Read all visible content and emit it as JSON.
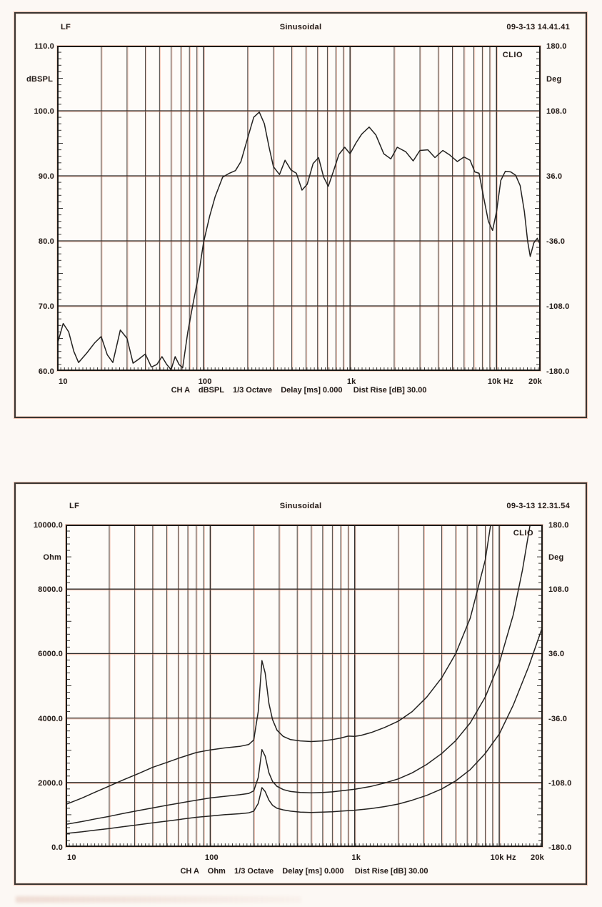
{
  "page": {
    "background": "#fcf8f4"
  },
  "chart_data": [
    {
      "type": "line",
      "header": {
        "left": "LF",
        "center": "Sinusoidal",
        "right": "09-3-13 14.41.41"
      },
      "watermark": "CLIO",
      "y_axis": {
        "unit": "dBSPL",
        "min": 60,
        "max": 110,
        "labels": [
          "110.0",
          "100.0",
          "90.0",
          "80.0",
          "70.0",
          "60.0"
        ]
      },
      "y2_axis": {
        "unit": "Deg",
        "labels": [
          "180.0",
          "108.0",
          "36.0",
          "-36.0",
          "-108.0",
          "-180.0"
        ]
      },
      "x_axis": {
        "scale": "log",
        "min": 10,
        "max": 20000,
        "labels": [
          {
            "text": "10",
            "freq": 10,
            "align": "start"
          },
          {
            "text": "100",
            "freq": 100,
            "align": "middle"
          },
          {
            "text": "1k",
            "freq": 1000,
            "align": "middle"
          },
          {
            "text": "10k Hz",
            "freq": 10000,
            "align": "middle"
          },
          {
            "text": "20k",
            "freq": 20000,
            "align": "end"
          }
        ]
      },
      "grid": true,
      "legend_position": "none",
      "caption": "CH A    dBSPL    1/3 Octave    Delay [ms] 0.000     Dist Rise [dB] 30.00",
      "series": [
        {
          "name": "spl-response",
          "points": [
            [
              10,
              64
            ],
            [
              11,
              67.3
            ],
            [
              12,
              66
            ],
            [
              13,
              63
            ],
            [
              14,
              61.3
            ],
            [
              16,
              62.8
            ],
            [
              18,
              64.3
            ],
            [
              20,
              65.3
            ],
            [
              22,
              62.5
            ],
            [
              24,
              61.3
            ],
            [
              27,
              66.3
            ],
            [
              30,
              65
            ],
            [
              33,
              61.2
            ],
            [
              36,
              61.8
            ],
            [
              40,
              62.6
            ],
            [
              44,
              60.6
            ],
            [
              48,
              61
            ],
            [
              52,
              62.2
            ],
            [
              56,
              61
            ],
            [
              60,
              60.2
            ],
            [
              64,
              62.2
            ],
            [
              68,
              61
            ],
            [
              72,
              60.5
            ],
            [
              78,
              66
            ],
            [
              85,
              70.5
            ],
            [
              92,
              74.5
            ],
            [
              100,
              79.8
            ],
            [
              110,
              83.8
            ],
            [
              120,
              86.8
            ],
            [
              135,
              89.8
            ],
            [
              150,
              90.4
            ],
            [
              165,
              90.8
            ],
            [
              180,
              92.2
            ],
            [
              200,
              95.8
            ],
            [
              220,
              99
            ],
            [
              240,
              99.8
            ],
            [
              260,
              98
            ],
            [
              280,
              94.4
            ],
            [
              300,
              91.4
            ],
            [
              330,
              90.2
            ],
            [
              360,
              92.4
            ],
            [
              395,
              90.9
            ],
            [
              430,
              90.4
            ],
            [
              470,
              87.8
            ],
            [
              510,
              88.7
            ],
            [
              560,
              91.9
            ],
            [
              610,
              92.8
            ],
            [
              660,
              89.8
            ],
            [
              710,
              88.4
            ],
            [
              770,
              90.7
            ],
            [
              840,
              93.3
            ],
            [
              920,
              94.4
            ],
            [
              1000,
              93.4
            ],
            [
              1100,
              95.1
            ],
            [
              1200,
              96.4
            ],
            [
              1350,
              97.5
            ],
            [
              1500,
              96.3
            ],
            [
              1700,
              93.4
            ],
            [
              1900,
              92.6
            ],
            [
              2100,
              94.4
            ],
            [
              2400,
              93.7
            ],
            [
              2700,
              92.3
            ],
            [
              3000,
              93.9
            ],
            [
              3400,
              94
            ],
            [
              3800,
              92.8
            ],
            [
              4300,
              93.9
            ],
            [
              4800,
              93.2
            ],
            [
              5400,
              92.2
            ],
            [
              6000,
              92.9
            ],
            [
              6600,
              92.4
            ],
            [
              7100,
              90.6
            ],
            [
              7600,
              90.4
            ],
            [
              8200,
              86.5
            ],
            [
              8800,
              83
            ],
            [
              9400,
              81.6
            ],
            [
              10000,
              84.5
            ],
            [
              10700,
              89.3
            ],
            [
              11500,
              90.7
            ],
            [
              12500,
              90.6
            ],
            [
              13500,
              90.1
            ],
            [
              14500,
              88.5
            ],
            [
              15500,
              84.5
            ],
            [
              16300,
              80
            ],
            [
              17000,
              77.6
            ],
            [
              18000,
              79.7
            ],
            [
              19000,
              80.4
            ],
            [
              20000,
              79.3
            ]
          ]
        }
      ]
    },
    {
      "type": "line",
      "header": {
        "left": "LF",
        "center": "Sinusoidal",
        "right": "09-3-13 12.31.54"
      },
      "watermark": "CLIO",
      "y_axis": {
        "unit": "Ohm",
        "min": 0,
        "max": 10000,
        "labels": [
          "10000.0",
          "8000.0",
          "6000.0",
          "4000.0",
          "2000.0",
          "0.0"
        ]
      },
      "y2_axis": {
        "unit": "Deg",
        "labels": [
          "180.0",
          "108.0",
          "36.0",
          "-36.0",
          "-108.0",
          "-180.0"
        ]
      },
      "x_axis": {
        "scale": "log",
        "min": 10,
        "max": 20000,
        "labels": [
          {
            "text": "10",
            "freq": 10,
            "align": "start"
          },
          {
            "text": "100",
            "freq": 100,
            "align": "middle"
          },
          {
            "text": "1k",
            "freq": 1000,
            "align": "middle"
          },
          {
            "text": "10k Hz",
            "freq": 10000,
            "align": "middle"
          },
          {
            "text": "20k",
            "freq": 20000,
            "align": "end"
          }
        ]
      },
      "grid": true,
      "legend_position": "none",
      "caption": "CH A    Ohm    1/3 Octave    Delay [ms] 0.000     Dist Rise [dB] 30.00",
      "series": [
        {
          "name": "impedance-high",
          "points": [
            [
              10,
              1320
            ],
            [
              13,
              1520
            ],
            [
              16,
              1700
            ],
            [
              20,
              1890
            ],
            [
              25,
              2080
            ],
            [
              32,
              2280
            ],
            [
              40,
              2470
            ],
            [
              50,
              2620
            ],
            [
              63,
              2780
            ],
            [
              80,
              2930
            ],
            [
              100,
              3010
            ],
            [
              125,
              3070
            ],
            [
              160,
              3120
            ],
            [
              185,
              3180
            ],
            [
              200,
              3320
            ],
            [
              215,
              4200
            ],
            [
              228,
              5780
            ],
            [
              240,
              5400
            ],
            [
              255,
              4450
            ],
            [
              270,
              3950
            ],
            [
              290,
              3620
            ],
            [
              320,
              3430
            ],
            [
              360,
              3330
            ],
            [
              420,
              3290
            ],
            [
              500,
              3270
            ],
            [
              600,
              3290
            ],
            [
              700,
              3330
            ],
            [
              800,
              3380
            ],
            [
              900,
              3440
            ],
            [
              1000,
              3430
            ],
            [
              1100,
              3460
            ],
            [
              1300,
              3550
            ],
            [
              1600,
              3700
            ],
            [
              2000,
              3900
            ],
            [
              2500,
              4200
            ],
            [
              3150,
              4650
            ],
            [
              4000,
              5250
            ],
            [
              5000,
              6000
            ],
            [
              6300,
              7100
            ],
            [
              8000,
              8900
            ],
            [
              8800,
              10100
            ]
          ]
        },
        {
          "name": "impedance-mid",
          "points": [
            [
              10,
              700
            ],
            [
              13,
              790
            ],
            [
              16,
              870
            ],
            [
              20,
              950
            ],
            [
              25,
              1040
            ],
            [
              32,
              1130
            ],
            [
              40,
              1210
            ],
            [
              50,
              1290
            ],
            [
              63,
              1370
            ],
            [
              80,
              1450
            ],
            [
              100,
              1520
            ],
            [
              125,
              1570
            ],
            [
              160,
              1620
            ],
            [
              185,
              1660
            ],
            [
              200,
              1740
            ],
            [
              215,
              2150
            ],
            [
              228,
              3020
            ],
            [
              240,
              2820
            ],
            [
              255,
              2300
            ],
            [
              270,
              2030
            ],
            [
              290,
              1880
            ],
            [
              320,
              1780
            ],
            [
              360,
              1720
            ],
            [
              420,
              1690
            ],
            [
              500,
              1680
            ],
            [
              600,
              1690
            ],
            [
              700,
              1710
            ],
            [
              800,
              1740
            ],
            [
              1000,
              1790
            ],
            [
              1300,
              1880
            ],
            [
              1600,
              1980
            ],
            [
              2000,
              2110
            ],
            [
              2500,
              2300
            ],
            [
              3150,
              2560
            ],
            [
              4000,
              2900
            ],
            [
              5000,
              3300
            ],
            [
              6300,
              3850
            ],
            [
              8000,
              4650
            ],
            [
              10000,
              5700
            ],
            [
              12500,
              7200
            ],
            [
              14500,
              8600
            ],
            [
              16500,
              10100
            ]
          ]
        },
        {
          "name": "impedance-low",
          "points": [
            [
              10,
              420
            ],
            [
              13,
              470
            ],
            [
              16,
              520
            ],
            [
              20,
              570
            ],
            [
              25,
              630
            ],
            [
              32,
              690
            ],
            [
              40,
              750
            ],
            [
              50,
              800
            ],
            [
              63,
              860
            ],
            [
              80,
              920
            ],
            [
              100,
              960
            ],
            [
              125,
              1000
            ],
            [
              160,
              1030
            ],
            [
              185,
              1060
            ],
            [
              200,
              1110
            ],
            [
              215,
              1350
            ],
            [
              228,
              1840
            ],
            [
              240,
              1720
            ],
            [
              255,
              1450
            ],
            [
              270,
              1290
            ],
            [
              290,
              1200
            ],
            [
              320,
              1150
            ],
            [
              360,
              1110
            ],
            [
              420,
              1080
            ],
            [
              500,
              1070
            ],
            [
              600,
              1080
            ],
            [
              700,
              1090
            ],
            [
              800,
              1110
            ],
            [
              1000,
              1140
            ],
            [
              1300,
              1190
            ],
            [
              1600,
              1250
            ],
            [
              2000,
              1330
            ],
            [
              2500,
              1450
            ],
            [
              3150,
              1600
            ],
            [
              4000,
              1800
            ],
            [
              5000,
              2050
            ],
            [
              6300,
              2400
            ],
            [
              8000,
              2900
            ],
            [
              10000,
              3500
            ],
            [
              12500,
              4400
            ],
            [
              16000,
              5600
            ],
            [
              20000,
              6850
            ]
          ]
        }
      ]
    }
  ]
}
